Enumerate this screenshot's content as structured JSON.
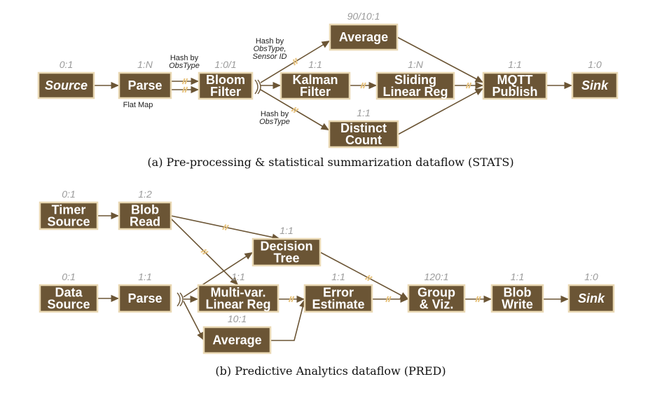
{
  "diagrams": [
    {
      "id": "stats",
      "caption": "(a) Pre-processing & statistical summarization dataflow (STATS)",
      "nodes": [
        {
          "id": "source",
          "lines": [
            "Source"
          ],
          "italic": true,
          "ratio": "0:1"
        },
        {
          "id": "parse",
          "lines": [
            "Parse"
          ],
          "italic": false,
          "ratio": "1:N"
        },
        {
          "id": "bloom",
          "lines": [
            "Bloom",
            "Filter"
          ],
          "italic": false,
          "ratio": "1:0/1"
        },
        {
          "id": "average",
          "lines": [
            "Average"
          ],
          "italic": false,
          "ratio": "90/10:1"
        },
        {
          "id": "kalman",
          "lines": [
            "Kalman",
            "Filter"
          ],
          "italic": false,
          "ratio": "1:1"
        },
        {
          "id": "sliding",
          "lines": [
            "Sliding",
            "Linear Reg"
          ],
          "italic": false,
          "ratio": "1:N"
        },
        {
          "id": "distinct",
          "lines": [
            "Distinct",
            "Count"
          ],
          "italic": false,
          "ratio": "1:1"
        },
        {
          "id": "mqtt",
          "lines": [
            "MQTT",
            "Publish"
          ],
          "italic": false,
          "ratio": "1:1"
        },
        {
          "id": "sink",
          "lines": [
            "Sink"
          ],
          "italic": true,
          "ratio": "1:0"
        }
      ],
      "edges": [
        {
          "from": "source",
          "to": "parse"
        },
        {
          "from": "parse",
          "to": "bloom"
        },
        {
          "from": "parse",
          "to": "bloom"
        },
        {
          "from": "bloom",
          "to": "average"
        },
        {
          "from": "bloom",
          "to": "kalman"
        },
        {
          "from": "bloom",
          "to": "distinct"
        },
        {
          "from": "kalman",
          "to": "sliding"
        },
        {
          "from": "average",
          "to": "mqtt"
        },
        {
          "from": "sliding",
          "to": "mqtt"
        },
        {
          "from": "distinct",
          "to": "mqtt"
        },
        {
          "from": "mqtt",
          "to": "sink"
        }
      ],
      "annotations": [
        {
          "id": "hash-obstype-1",
          "lines": [
            {
              "text": "Hash by",
              "italic": false
            },
            {
              "text": "ObsType",
              "italic": true
            }
          ]
        },
        {
          "id": "flat-map",
          "lines": [
            {
              "text": "Flat Map",
              "italic": false
            }
          ]
        },
        {
          "id": "hash-sensor",
          "lines": [
            {
              "text": "Hash by",
              "italic": false
            },
            {
              "text": "ObsType,",
              "italic": true
            },
            {
              "text": "Sensor ID",
              "italic": true
            }
          ]
        },
        {
          "id": "hash-obstype-2",
          "lines": [
            {
              "text": "Hash by",
              "italic": false
            },
            {
              "text": "ObsType",
              "italic": true
            }
          ]
        }
      ]
    },
    {
      "id": "pred",
      "caption": "(b) Predictive Analytics dataflow (PRED)",
      "nodes": [
        {
          "id": "timer",
          "lines": [
            "Timer",
            "Source"
          ],
          "italic": false,
          "ratio": "0:1"
        },
        {
          "id": "blobread",
          "lines": [
            "Blob",
            "Read"
          ],
          "italic": false,
          "ratio": "1:2"
        },
        {
          "id": "datasrc",
          "lines": [
            "Data",
            "Source"
          ],
          "italic": false,
          "ratio": "0:1"
        },
        {
          "id": "parse2",
          "lines": [
            "Parse"
          ],
          "italic": false,
          "ratio": "1:1"
        },
        {
          "id": "dtree",
          "lines": [
            "Decision",
            "Tree"
          ],
          "italic": false,
          "ratio": "1:1"
        },
        {
          "id": "mlr",
          "lines": [
            "Multi-var.",
            "Linear Reg"
          ],
          "italic": false,
          "ratio": "1:1"
        },
        {
          "id": "avg2",
          "lines": [
            "Average"
          ],
          "italic": false,
          "ratio": "10:1"
        },
        {
          "id": "err",
          "lines": [
            "Error",
            "Estimate"
          ],
          "italic": false,
          "ratio": "1:1"
        },
        {
          "id": "group",
          "lines": [
            "Group",
            "& Viz."
          ],
          "italic": false,
          "ratio": "120:1"
        },
        {
          "id": "blobwrite",
          "lines": [
            "Blob",
            "Write"
          ],
          "italic": false,
          "ratio": "1:1"
        },
        {
          "id": "sink2",
          "lines": [
            "Sink"
          ],
          "italic": true,
          "ratio": "1:0"
        }
      ],
      "edges": [
        {
          "from": "timer",
          "to": "blobread"
        },
        {
          "from": "blobread",
          "to": "dtree"
        },
        {
          "from": "blobread",
          "to": "mlr"
        },
        {
          "from": "datasrc",
          "to": "parse2"
        },
        {
          "from": "parse2",
          "to": "dtree"
        },
        {
          "from": "parse2",
          "to": "mlr"
        },
        {
          "from": "parse2",
          "to": "avg2"
        },
        {
          "from": "mlr",
          "to": "err"
        },
        {
          "from": "avg2",
          "to": "err"
        },
        {
          "from": "dtree",
          "to": "group"
        },
        {
          "from": "err",
          "to": "group"
        },
        {
          "from": "group",
          "to": "blobwrite"
        },
        {
          "from": "blobwrite",
          "to": "sink2"
        }
      ],
      "annotations": []
    }
  ]
}
